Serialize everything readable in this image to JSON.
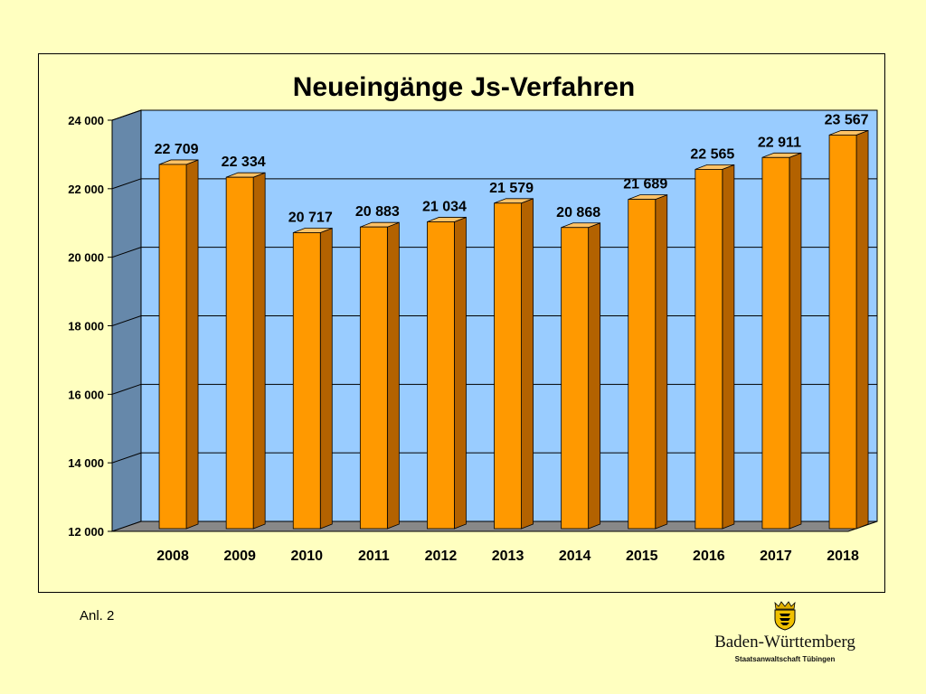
{
  "chart_data": {
    "type": "bar",
    "title": "Neueingänge Js-Verfahren",
    "categories": [
      "2008",
      "2009",
      "2010",
      "2011",
      "2012",
      "2013",
      "2014",
      "2015",
      "2016",
      "2017",
      "2018"
    ],
    "series": [
      {
        "values": [
          22709,
          22334,
          20717,
          20883,
          21034,
          21579,
          20868,
          21689,
          22565,
          22911,
          23567
        ],
        "value_labels": [
          "22 709",
          "22 334",
          "20 717",
          "20 883",
          "21 034",
          "21 579",
          "20 868",
          "21 689",
          "22 565",
          "22 911",
          "23 567"
        ]
      }
    ],
    "ylim": [
      12000,
      24000
    ],
    "yticks": [
      12000,
      14000,
      16000,
      18000,
      20000,
      22000,
      24000
    ],
    "ytick_labels": [
      "12 000",
      "14 000",
      "16 000",
      "18 000",
      "20 000",
      "22 000",
      "24 000"
    ],
    "xlabel": "",
    "ylabel": "",
    "grid": true,
    "legend": "none",
    "style": "3d",
    "colors": {
      "bar_front": "#ff9900",
      "bar_side": "#b36200",
      "bar_top": "#ffc266",
      "back_wall": "#99ccff",
      "side_wall": "#6688aa",
      "floor": "#888888"
    }
  },
  "footnote": "Anl. 2",
  "logo": {
    "emblem": "coat-of-arms-icon",
    "state_name": "Baden-Württemberg",
    "office_name": "Staatsanwaltschaft Tübingen"
  }
}
